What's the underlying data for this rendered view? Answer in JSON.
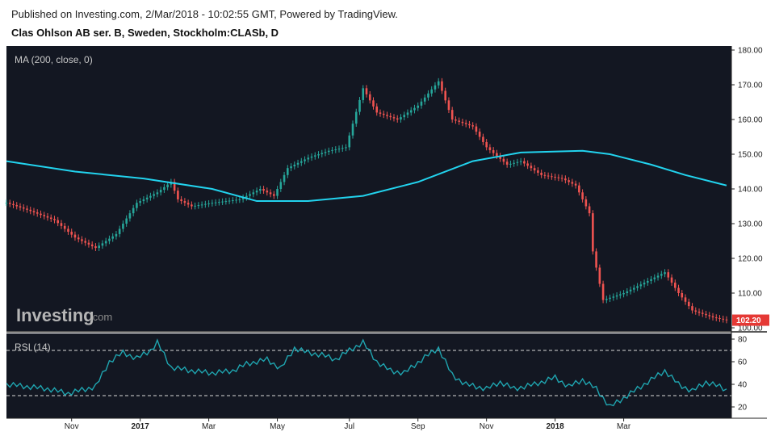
{
  "header": {
    "published": "Published on Investing.com, 2/Mar/2018 - 10:02:55 GMT, Powered by TradingView.",
    "title": "Clas Ohlson AB ser. B, Sweden, Stockholm:CLASb, D"
  },
  "watermark": {
    "brand": "Investing",
    "suffix": ".com"
  },
  "colors": {
    "background": "#131722",
    "up": "#26a69a",
    "down": "#ef5350",
    "ma": "#22d3ee",
    "rsi": "#1fa5b0",
    "last_price_bg": "#e53935"
  },
  "chart_data": [
    {
      "type": "candlestick",
      "indicator_label": "MA (200, close, 0)",
      "ylim": [
        100,
        180
      ],
      "y_ticks": [
        "100.00",
        "110.00",
        "120.00",
        "130.00",
        "140.00",
        "150.00",
        "160.00",
        "170.00",
        "180.00"
      ],
      "last_price": "102.20",
      "x_ticks": [
        {
          "label": "Nov",
          "bold": false
        },
        {
          "label": "2017",
          "bold": true
        },
        {
          "label": "Mar",
          "bold": false
        },
        {
          "label": "May",
          "bold": false
        },
        {
          "label": "Jul",
          "bold": false
        },
        {
          "label": "Sep",
          "bold": false
        },
        {
          "label": "Nov",
          "bold": false
        },
        {
          "label": "2018",
          "bold": true
        },
        {
          "label": "Mar",
          "bold": false
        }
      ],
      "close_path": [
        [
          0,
          136
        ],
        [
          6,
          134
        ],
        [
          14,
          131
        ],
        [
          20,
          126
        ],
        [
          26,
          123
        ],
        [
          32,
          127
        ],
        [
          38,
          136
        ],
        [
          44,
          139
        ],
        [
          48,
          142
        ],
        [
          50,
          137
        ],
        [
          54,
          135
        ],
        [
          60,
          136
        ],
        [
          68,
          137
        ],
        [
          74,
          140
        ],
        [
          78,
          138
        ],
        [
          82,
          146
        ],
        [
          88,
          149
        ],
        [
          94,
          151
        ],
        [
          99,
          152
        ],
        [
          104,
          169
        ],
        [
          108,
          162
        ],
        [
          114,
          160
        ],
        [
          120,
          164
        ],
        [
          126,
          171
        ],
        [
          130,
          160
        ],
        [
          136,
          158
        ],
        [
          140,
          152
        ],
        [
          146,
          147
        ],
        [
          150,
          148
        ],
        [
          156,
          144
        ],
        [
          162,
          143
        ],
        [
          166,
          141
        ],
        [
          170,
          133
        ],
        [
          171,
          122
        ],
        [
          174,
          108
        ],
        [
          180,
          110
        ],
        [
          186,
          113
        ],
        [
          192,
          116
        ],
        [
          196,
          110
        ],
        [
          200,
          105
        ],
        [
          206,
          103
        ],
        [
          210,
          102.2
        ]
      ],
      "ma_series": {
        "name": "MA (200, close, 0)",
        "points": [
          [
            0,
            148
          ],
          [
            20,
            145
          ],
          [
            40,
            143
          ],
          [
            60,
            140
          ],
          [
            73,
            136.5
          ],
          [
            88,
            136.5
          ],
          [
            104,
            138
          ],
          [
            120,
            142
          ],
          [
            136,
            148
          ],
          [
            150,
            150.5
          ],
          [
            168,
            151
          ],
          [
            176,
            150
          ],
          [
            188,
            147
          ],
          [
            198,
            144
          ],
          [
            210,
            141
          ]
        ]
      }
    },
    {
      "type": "line",
      "indicator_label": "RSI (14)",
      "ylim": [
        10,
        85
      ],
      "y_ticks": [
        "20",
        "40",
        "60",
        "80"
      ],
      "levels": [
        30,
        70
      ],
      "series": [
        {
          "points": [
            [
              0,
              40
            ],
            [
              6,
              38
            ],
            [
              12,
              36
            ],
            [
              18,
              32
            ],
            [
              22,
              35
            ],
            [
              26,
              38
            ],
            [
              30,
              60
            ],
            [
              34,
              68
            ],
            [
              38,
              63
            ],
            [
              42,
              70
            ],
            [
              44,
              77
            ],
            [
              48,
              55
            ],
            [
              54,
              52
            ],
            [
              60,
              50
            ],
            [
              66,
              52
            ],
            [
              70,
              58
            ],
            [
              76,
              62
            ],
            [
              80,
              54
            ],
            [
              84,
              72
            ],
            [
              88,
              68
            ],
            [
              92,
              66
            ],
            [
              96,
              62
            ],
            [
              100,
              70
            ],
            [
              104,
              77
            ],
            [
              108,
              60
            ],
            [
              112,
              52
            ],
            [
              116,
              50
            ],
            [
              122,
              64
            ],
            [
              126,
              72
            ],
            [
              130,
              48
            ],
            [
              134,
              40
            ],
            [
              140,
              36
            ],
            [
              144,
              42
            ],
            [
              148,
              36
            ],
            [
              154,
              40
            ],
            [
              160,
              46
            ],
            [
              164,
              38
            ],
            [
              168,
              44
            ],
            [
              172,
              36
            ],
            [
              176,
              20
            ],
            [
              180,
              28
            ],
            [
              184,
              36
            ],
            [
              188,
              44
            ],
            [
              192,
              52
            ],
            [
              196,
              40
            ],
            [
              200,
              34
            ],
            [
              204,
              42
            ],
            [
              208,
              38
            ],
            [
              210,
              35
            ]
          ]
        }
      ]
    }
  ]
}
